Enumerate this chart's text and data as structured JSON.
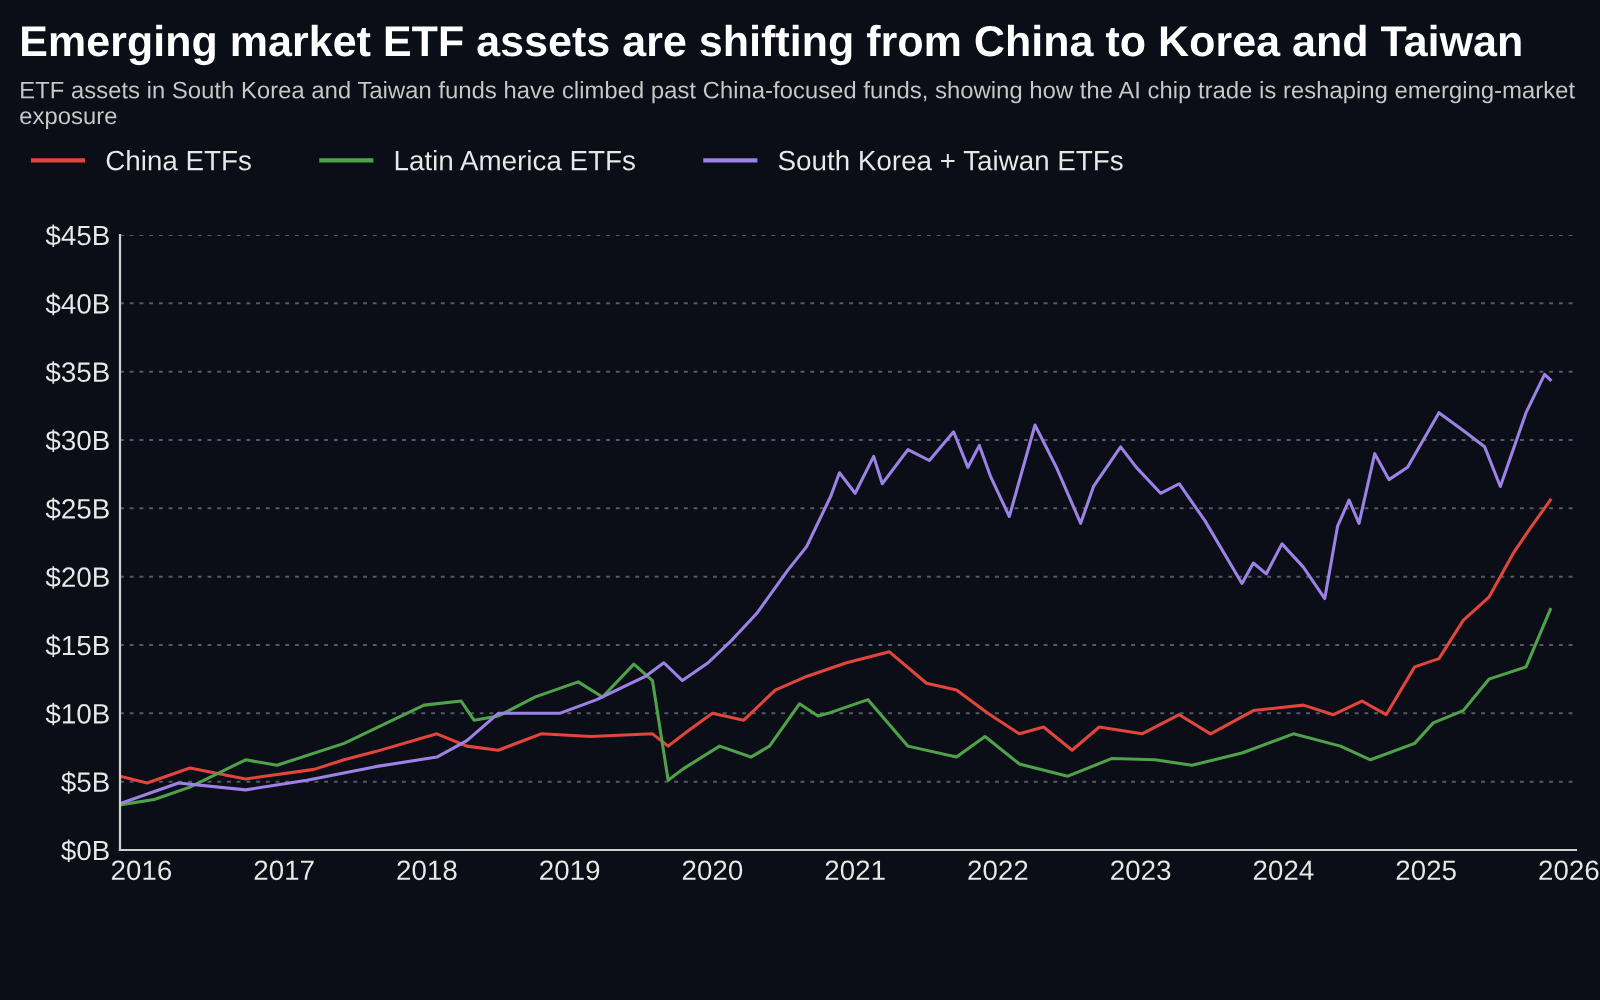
{
  "chart_data": {
    "type": "line",
    "title": "Emerging market ETF assets are shifting from China to Korea and Taiwan",
    "subtitle": "ETF assets in South Korea and Taiwan funds have climbed past China-focused funds, showing how the AI chip trade is reshaping emerging-market exposure",
    "series": [
      {
        "name": "China ETFs",
        "color": "#e2453c",
        "x": [
          2015.85,
          2016.04,
          2016.34,
          2016.73,
          2017.21,
          2017.42,
          2017.64,
          2018.07,
          2018.28,
          2018.5,
          2018.8,
          2019.15,
          2019.58,
          2019.69,
          2019.84,
          2020.0,
          2020.22,
          2020.44,
          2020.66,
          2020.94,
          2021.24,
          2021.5,
          2021.71,
          2021.93,
          2022.15,
          2022.32,
          2022.52,
          2022.71,
          2023.01,
          2023.27,
          2023.49,
          2023.79,
          2024.14,
          2024.35,
          2024.55,
          2024.72,
          2024.92,
          2025.09,
          2025.26,
          2025.44,
          2025.61,
          2025.74,
          2025.87
        ],
        "values": [
          5.4,
          4.9,
          6.0,
          5.2,
          5.9,
          6.6,
          7.2,
          8.5,
          7.6,
          7.3,
          8.5,
          8.3,
          8.5,
          7.6,
          8.8,
          10.0,
          9.5,
          11.7,
          12.7,
          13.7,
          14.5,
          12.2,
          11.7,
          10.0,
          8.5,
          9.0,
          7.3,
          9.0,
          8.5,
          9.9,
          8.5,
          10.2,
          10.6,
          9.9,
          10.9,
          9.9,
          13.4,
          14.0,
          16.8,
          18.5,
          21.7,
          23.7,
          25.6
        ]
      },
      {
        "name": "Latin America ETFs",
        "color": "#4fa24a",
        "x": [
          2015.85,
          2016.09,
          2016.34,
          2016.73,
          2016.95,
          2017.42,
          2017.72,
          2017.98,
          2018.24,
          2018.33,
          2018.5,
          2018.76,
          2019.06,
          2019.23,
          2019.45,
          2019.58,
          2019.69,
          2019.79,
          2020.05,
          2020.27,
          2020.4,
          2020.61,
          2020.74,
          2020.81,
          2021.09,
          2021.37,
          2021.71,
          2021.91,
          2022.15,
          2022.49,
          2022.8,
          2023.1,
          2023.36,
          2023.71,
          2024.07,
          2024.4,
          2024.61,
          2024.92,
          2025.05,
          2025.26,
          2025.44,
          2025.7,
          2025.87
        ],
        "values": [
          3.3,
          3.7,
          4.6,
          6.6,
          6.2,
          7.8,
          9.3,
          10.6,
          10.9,
          9.5,
          9.8,
          11.2,
          12.3,
          11.2,
          13.6,
          12.4,
          5.1,
          5.9,
          7.6,
          6.8,
          7.6,
          10.7,
          9.8,
          10.0,
          11.0,
          7.6,
          6.8,
          8.3,
          6.3,
          5.4,
          6.7,
          6.6,
          6.2,
          7.1,
          8.5,
          7.6,
          6.6,
          7.8,
          9.3,
          10.2,
          12.5,
          13.4,
          17.6
        ]
      },
      {
        "name": "South Korea + Taiwan ETFs",
        "color": "#9d82e6",
        "x": [
          2015.85,
          2016.26,
          2016.73,
          2017.16,
          2017.64,
          2018.07,
          2018.28,
          2018.5,
          2018.93,
          2019.19,
          2019.53,
          2019.66,
          2019.79,
          2019.97,
          2020.14,
          2020.31,
          2020.53,
          2020.66,
          2020.83,
          2020.89,
          2021.0,
          2021.13,
          2021.19,
          2021.37,
          2021.52,
          2021.69,
          2021.79,
          2021.87,
          2021.95,
          2022.08,
          2022.26,
          2022.41,
          2022.58,
          2022.67,
          2022.86,
          2022.97,
          2023.14,
          2023.27,
          2023.45,
          2023.71,
          2023.79,
          2023.88,
          2023.99,
          2024.14,
          2024.29,
          2024.38,
          2024.46,
          2024.53,
          2024.64,
          2024.74,
          2024.87,
          2025.09,
          2025.26,
          2025.41,
          2025.52,
          2025.7,
          2025.83,
          2025.87
        ],
        "values": [
          3.4,
          4.9,
          4.4,
          5.1,
          6.1,
          6.8,
          8.0,
          10.0,
          10.0,
          11.0,
          12.7,
          13.7,
          12.4,
          13.7,
          15.4,
          17.3,
          20.5,
          22.2,
          25.9,
          27.6,
          26.1,
          28.8,
          26.8,
          29.3,
          28.5,
          30.6,
          28.0,
          29.6,
          27.3,
          24.4,
          31.1,
          28.0,
          23.9,
          26.6,
          29.5,
          28.0,
          26.1,
          26.8,
          24.1,
          19.5,
          21.0,
          20.2,
          22.4,
          20.7,
          18.4,
          23.7,
          25.6,
          23.9,
          29.0,
          27.1,
          28.0,
          32.0,
          30.7,
          29.5,
          26.6,
          32.0,
          34.8,
          34.4
        ]
      }
    ],
    "xlim": [
      2015.85,
      2026.05
    ],
    "xticks": [
      2016,
      2017,
      2018,
      2019,
      2020,
      2021,
      2022,
      2023,
      2024,
      2025,
      2026
    ],
    "ylim": [
      0,
      45
    ],
    "yticks": [
      {
        "value": 0,
        "label": "$0B"
      },
      {
        "value": 5,
        "label": "$5B"
      },
      {
        "value": 10,
        "label": "$10B"
      },
      {
        "value": 15,
        "label": "$15B"
      },
      {
        "value": 20,
        "label": "$20B"
      },
      {
        "value": 25,
        "label": "$25B"
      },
      {
        "value": 30,
        "label": "$30B"
      },
      {
        "value": 35,
        "label": "$35B"
      },
      {
        "value": 40,
        "label": "$40B"
      },
      {
        "value": 45,
        "label": "$45B"
      }
    ],
    "grid": "y",
    "legend": "top left"
  }
}
